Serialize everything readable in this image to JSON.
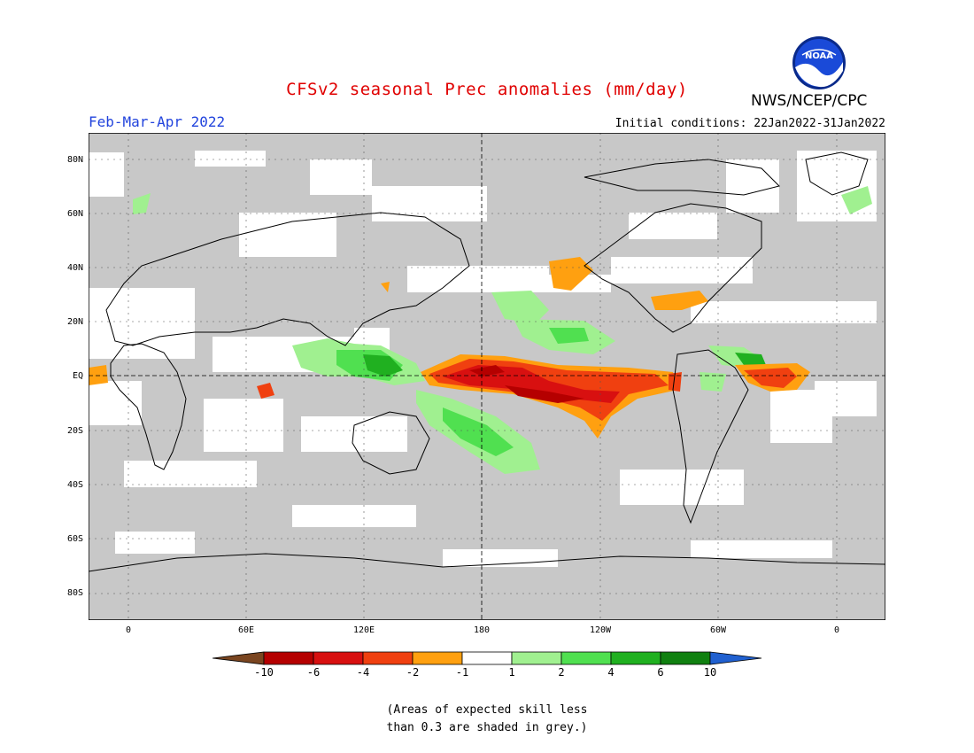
{
  "title": "CFSv2 seasonal Prec anomalies (mm/day)",
  "period": "Feb-Mar-Apr 2022",
  "initial_conditions": "Initial conditions: 22Jan2022-31Jan2022",
  "organization": "NWS/NCEP/CPC",
  "logo_text": "NOAA",
  "lat_labels": [
    "80N",
    "60N",
    "40N",
    "20N",
    "EQ",
    "20S",
    "40S",
    "60S",
    "80S"
  ],
  "lon_labels": [
    "0",
    "60E",
    "120E",
    "180",
    "120W",
    "60W",
    "0"
  ],
  "colorbar": {
    "labels": [
      "-10",
      "-6",
      "-4",
      "-2",
      "-1",
      "1",
      "2",
      "4",
      "6",
      "10"
    ],
    "colors": [
      "#7a4520",
      "#b50000",
      "#d81010",
      "#f04010",
      "#ffa010",
      "#ffffff",
      "#a0f090",
      "#50e050",
      "#20b020",
      "#108010",
      "#2060d0"
    ]
  },
  "note_line1": "(Areas of expected skill less",
  "note_line2": "than 0.3 are shaded in grey.)",
  "colors": {
    "skill_grey": "#c8c8c8",
    "title_red": "#e00000",
    "period_blue": "#2244dd"
  }
}
